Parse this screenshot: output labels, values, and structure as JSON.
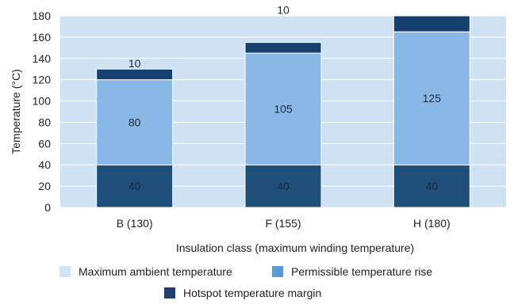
{
  "chart_data": {
    "type": "bar",
    "stacked": true,
    "categories": [
      "B (130)",
      "F (155)",
      "H (180)"
    ],
    "series": [
      {
        "name": "Maximum ambient temperature",
        "values": [
          40,
          40,
          40
        ],
        "color": "#1f4e79"
      },
      {
        "name": "Permissible temperature rise",
        "values": [
          80,
          105,
          125
        ],
        "color": "#8ab8e6"
      },
      {
        "name": "Hotspot temperature margin",
        "values": [
          10,
          10,
          15
        ],
        "color": "#15406e"
      }
    ],
    "ylim": [
      0,
      180
    ],
    "yticks": [
      0,
      20,
      40,
      60,
      80,
      100,
      120,
      140,
      160,
      180
    ],
    "ylabel": "Temperature (°C)",
    "xlabel": "Insulation class (maximum winding temperature)",
    "plot_background": "#cfe2f3",
    "grid": true,
    "legend_position": "bottom"
  },
  "legend": [
    {
      "label": "Maximum ambient temperature",
      "color": "#cfe6f7"
    },
    {
      "label": "Permissible temperature rise",
      "color": "#5b9bd5"
    },
    {
      "label": "Hotspot temperature margin",
      "color": "#1f3f6e"
    }
  ]
}
